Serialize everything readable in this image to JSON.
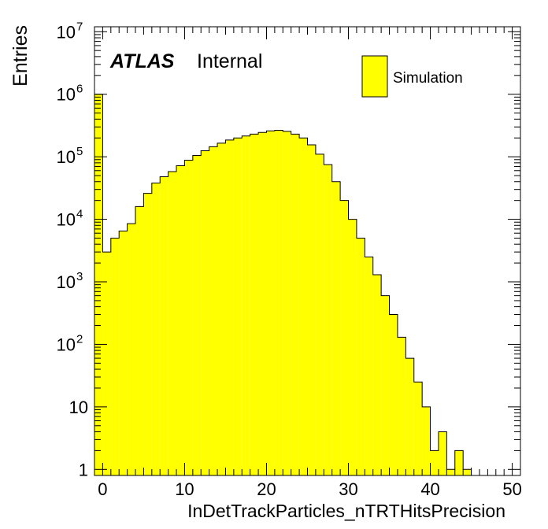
{
  "chart_data": {
    "type": "bar",
    "style": "histogram-step",
    "title": "",
    "xlabel": "InDetTrackParticles_nTRTHitsPrecision",
    "ylabel": "Entries",
    "xlim": [
      -1,
      51
    ],
    "ylim": [
      0.8,
      12000000
    ],
    "yscale": "log",
    "x_ticks": [
      0,
      10,
      20,
      30,
      40,
      50
    ],
    "y_ticks": [
      {
        "value": 1,
        "label": "1",
        "sup": ""
      },
      {
        "value": 10,
        "label": "10",
        "sup": ""
      },
      {
        "value": 100,
        "label": "10",
        "sup": "2"
      },
      {
        "value": 1000,
        "label": "10",
        "sup": "3"
      },
      {
        "value": 10000,
        "label": "10",
        "sup": "4"
      },
      {
        "value": 100000,
        "label": "10",
        "sup": "5"
      },
      {
        "value": 1000000,
        "label": "10",
        "sup": "6"
      },
      {
        "value": 10000000,
        "label": "10",
        "sup": "7"
      }
    ],
    "bin_width": 1,
    "bin_low_edges": [
      -1,
      0,
      1,
      2,
      3,
      4,
      5,
      6,
      7,
      8,
      9,
      10,
      11,
      12,
      13,
      14,
      15,
      16,
      17,
      18,
      19,
      20,
      21,
      22,
      23,
      24,
      25,
      26,
      27,
      28,
      29,
      30,
      31,
      32,
      33,
      34,
      35,
      36,
      37,
      38,
      39,
      40,
      41,
      42,
      43,
      44,
      45,
      46,
      47,
      48,
      49,
      50
    ],
    "values": [
      1000000,
      3000,
      5000,
      6500,
      8500,
      16000,
      26000,
      38000,
      48000,
      58000,
      72000,
      88000,
      105000,
      125000,
      145000,
      165000,
      185000,
      200000,
      215000,
      230000,
      245000,
      260000,
      265000,
      255000,
      230000,
      200000,
      155000,
      110000,
      75000,
      40000,
      20000,
      10000,
      5000,
      2500,
      1300,
      600,
      300,
      130,
      60,
      25,
      10,
      2,
      4,
      1,
      2,
      1,
      0,
      0,
      0,
      0,
      0,
      0
    ],
    "series": [
      {
        "name": "Simulation",
        "color": "#ffff00",
        "edge_color": "#000000"
      }
    ],
    "grid": false,
    "legend_position": "top-right"
  },
  "annotation": {
    "experiment": "ATLAS",
    "status": "Internal"
  }
}
